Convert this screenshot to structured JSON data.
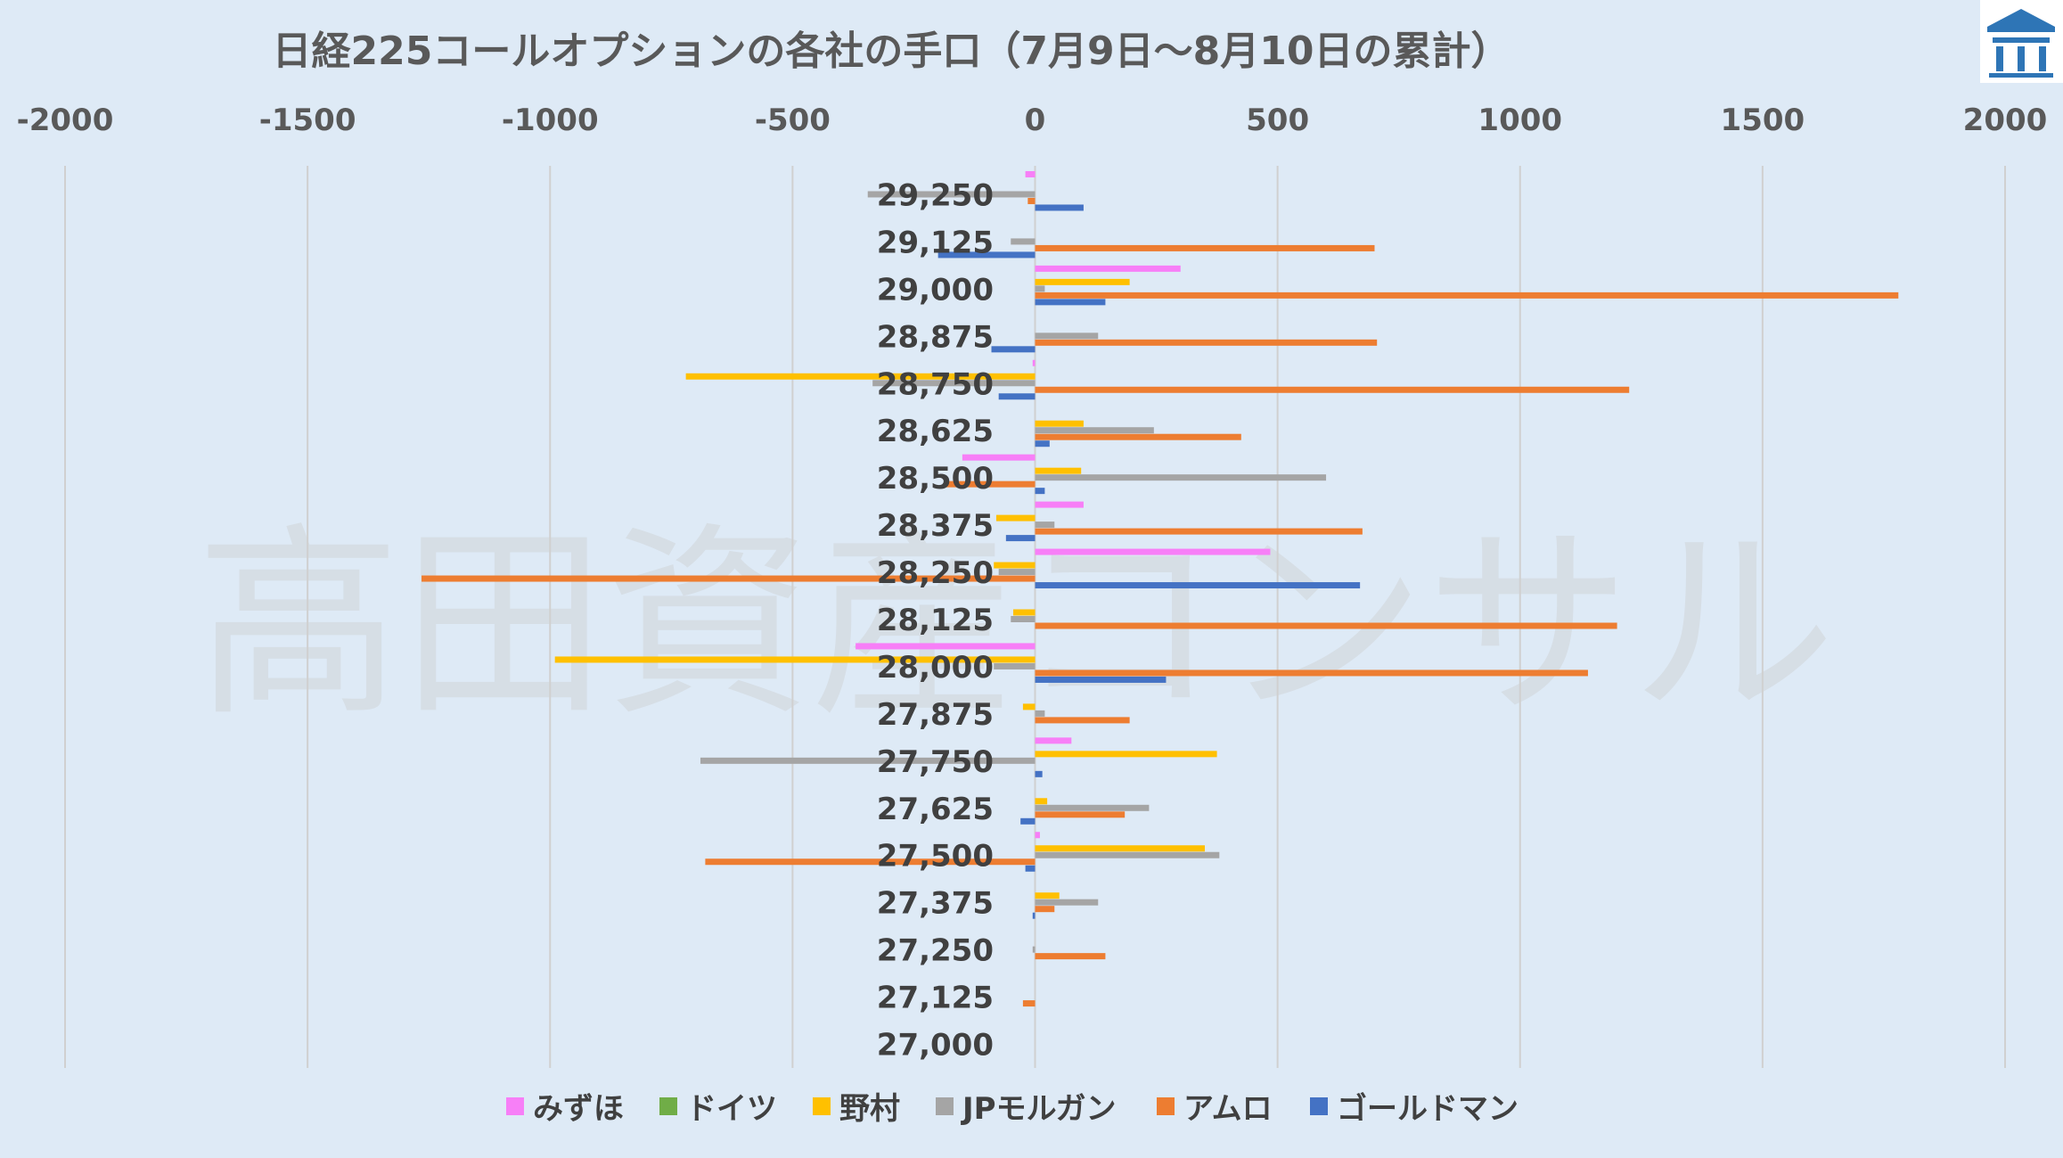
{
  "chart_data": {
    "type": "bar",
    "orientation": "horizontal",
    "title": "日経225コールオプションの各社の手口（7月9日～8月10日の累計）",
    "xlim": [
      -2000,
      2000
    ],
    "xticks": [
      -2000,
      -1500,
      -1000,
      -500,
      0,
      500,
      1000,
      1500,
      2000
    ],
    "xtick_labels": [
      "-2000",
      "-1500",
      "-1000",
      "-500",
      "0",
      "500",
      "1000",
      "1500",
      "2000"
    ],
    "categories": [
      "29,250",
      "29,125",
      "29,000",
      "28,875",
      "28,750",
      "28,625",
      "28,500",
      "28,375",
      "28,250",
      "28,125",
      "28,000",
      "27,875",
      "27,750",
      "27,625",
      "27,500",
      "27,375",
      "27,250",
      "27,125",
      "27,000"
    ],
    "series": [
      {
        "name": "みずほ",
        "color": "#f77ff7",
        "values": [
          -20,
          0,
          300,
          0,
          -5,
          0,
          -150,
          100,
          485,
          0,
          -370,
          0,
          75,
          0,
          10,
          0,
          0,
          0,
          0
        ]
      },
      {
        "name": "ドイツ",
        "color": "#70ad47",
        "values": [
          0,
          0,
          0,
          0,
          0,
          0,
          0,
          0,
          0,
          0,
          0,
          0,
          0,
          0,
          0,
          0,
          0,
          0,
          0
        ]
      },
      {
        "name": "野村",
        "color": "#ffc000",
        "values": [
          0,
          0,
          195,
          0,
          -720,
          100,
          95,
          -80,
          -85,
          -45,
          -990,
          -25,
          375,
          25,
          350,
          50,
          0,
          0,
          0
        ]
      },
      {
        "name": "JPモルガン",
        "color": "#a5a5a5",
        "values": [
          -345,
          -50,
          20,
          130,
          -335,
          245,
          600,
          40,
          -75,
          -50,
          -85,
          20,
          -690,
          235,
          380,
          130,
          -5,
          0,
          0
        ]
      },
      {
        "name": "アムロ",
        "color": "#ed7d31",
        "values": [
          -15,
          700,
          1780,
          705,
          1225,
          425,
          -185,
          675,
          -1265,
          1200,
          1140,
          195,
          0,
          185,
          -680,
          40,
          145,
          -25,
          0
        ]
      },
      {
        "name": "ゴールドマン",
        "color": "#4472c4",
        "values": [
          100,
          -200,
          145,
          -90,
          -75,
          30,
          20,
          -60,
          670,
          0,
          270,
          0,
          15,
          -30,
          -20,
          -5,
          0,
          0,
          0
        ]
      }
    ]
  },
  "watermark": "高田資産コンサル",
  "logo_label": "高田資産コンサル"
}
